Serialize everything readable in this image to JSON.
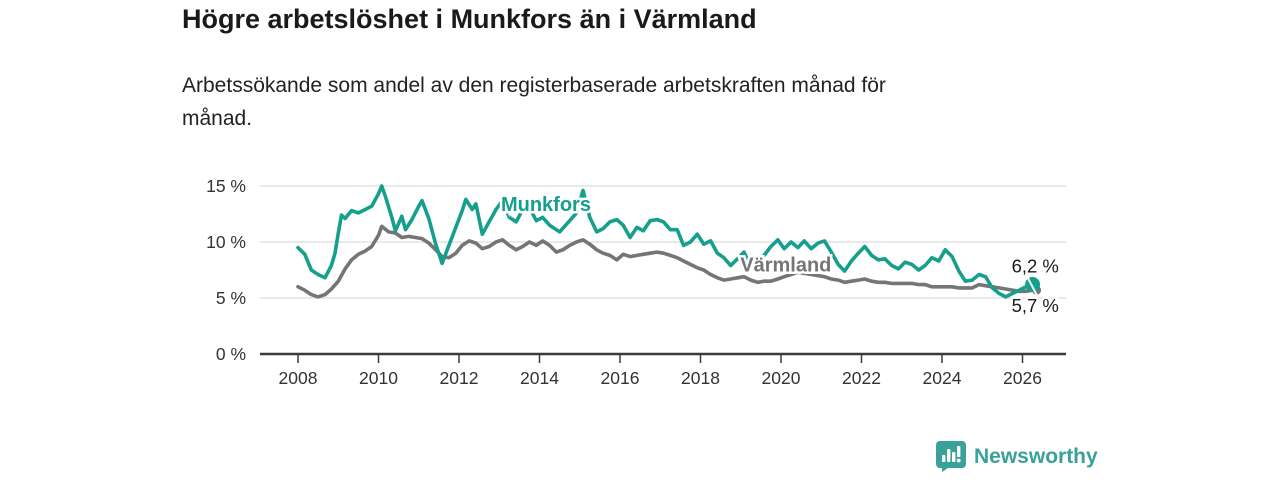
{
  "header": {
    "title": "Högre arbetslöshet i Munkfors än i Värmland",
    "subtitle_lines": [
      "Arbetssökande som andel av den registerbaserade arbetskraften månad för",
      "månad."
    ]
  },
  "chart_data": {
    "type": "line",
    "title": "Högre arbetslöshet i Munkfors än i Värmland",
    "subtitle": "Arbetssökande som andel av den registerbaserade arbetskraften månad för månad.",
    "xlabel": "",
    "ylabel": "",
    "xlim": [
      2007.05,
      2027.15
    ],
    "ylim": [
      0,
      15
    ],
    "grid": "horizontal",
    "legend_position": "inline-labels",
    "y_ticks": {
      "values": [
        0,
        5,
        10,
        15
      ],
      "labels": [
        "0 %",
        "5 %",
        "10 %",
        "15 %"
      ]
    },
    "x_ticks": {
      "values": [
        2008,
        2010,
        2012,
        2014,
        2016,
        2018,
        2020,
        2022,
        2024,
        2026
      ],
      "labels": [
        "2008",
        "2010",
        "2012",
        "2014",
        "2016",
        "2018",
        "2020",
        "2022",
        "2024",
        "2026"
      ]
    },
    "colors": {
      "munkfors": "#14A08C",
      "varmland": "#757575",
      "gridline": "#dcdcdc",
      "axis": "#3b3b3b",
      "tick_text": "#333333"
    },
    "series_labels": [
      {
        "text": "Munkfors",
        "year": 2014.16,
        "value": 13.4,
        "color": "#14A08C"
      },
      {
        "text": "Värmland",
        "year": 2020.12,
        "value": 8.0,
        "color": "#757575"
      }
    ],
    "series": [
      {
        "name": "Munkfors",
        "color": "#14A08C",
        "end_label": "6,2 %",
        "end_value": 6.2,
        "points": [
          [
            2008.0,
            9.5
          ],
          [
            2008.17,
            8.9
          ],
          [
            2008.33,
            7.5
          ],
          [
            2008.5,
            7.1
          ],
          [
            2008.67,
            6.8
          ],
          [
            2008.83,
            7.9
          ],
          [
            2008.92,
            9.0
          ],
          [
            2009.0,
            10.8
          ],
          [
            2009.08,
            12.4
          ],
          [
            2009.17,
            12.1
          ],
          [
            2009.33,
            12.8
          ],
          [
            2009.5,
            12.6
          ],
          [
            2009.67,
            12.9
          ],
          [
            2009.83,
            13.2
          ],
          [
            2010.0,
            14.3
          ],
          [
            2010.08,
            15.0
          ],
          [
            2010.17,
            14.1
          ],
          [
            2010.33,
            12.2
          ],
          [
            2010.42,
            11.0
          ],
          [
            2010.58,
            12.3
          ],
          [
            2010.67,
            11.1
          ],
          [
            2010.83,
            12.0
          ],
          [
            2011.0,
            13.2
          ],
          [
            2011.08,
            13.7
          ],
          [
            2011.25,
            12.1
          ],
          [
            2011.42,
            9.8
          ],
          [
            2011.58,
            8.1
          ],
          [
            2011.75,
            9.7
          ],
          [
            2011.92,
            11.3
          ],
          [
            2012.08,
            12.8
          ],
          [
            2012.17,
            13.8
          ],
          [
            2012.33,
            12.9
          ],
          [
            2012.42,
            13.4
          ],
          [
            2012.58,
            10.7
          ],
          [
            2012.75,
            11.8
          ],
          [
            2012.92,
            12.9
          ],
          [
            2013.08,
            13.7
          ],
          [
            2013.25,
            12.2
          ],
          [
            2013.42,
            11.8
          ],
          [
            2013.58,
            12.9
          ],
          [
            2013.75,
            13.1
          ],
          [
            2013.92,
            11.9
          ],
          [
            2014.08,
            12.2
          ],
          [
            2014.25,
            11.5
          ],
          [
            2014.5,
            10.9
          ],
          [
            2014.75,
            11.9
          ],
          [
            2014.92,
            12.6
          ],
          [
            2015.08,
            14.6
          ],
          [
            2015.25,
            12.2
          ],
          [
            2015.42,
            10.9
          ],
          [
            2015.58,
            11.2
          ],
          [
            2015.75,
            11.8
          ],
          [
            2015.92,
            12.0
          ],
          [
            2016.08,
            11.5
          ],
          [
            2016.25,
            10.4
          ],
          [
            2016.42,
            11.3
          ],
          [
            2016.58,
            11.0
          ],
          [
            2016.75,
            11.9
          ],
          [
            2016.92,
            12.0
          ],
          [
            2017.08,
            11.8
          ],
          [
            2017.25,
            11.1
          ],
          [
            2017.42,
            11.1
          ],
          [
            2017.58,
            9.7
          ],
          [
            2017.75,
            10.0
          ],
          [
            2017.92,
            10.7
          ],
          [
            2018.08,
            9.8
          ],
          [
            2018.25,
            10.1
          ],
          [
            2018.42,
            9.0
          ],
          [
            2018.58,
            8.6
          ],
          [
            2018.75,
            7.9
          ],
          [
            2018.92,
            8.5
          ],
          [
            2019.08,
            9.1
          ],
          [
            2019.25,
            7.8
          ],
          [
            2019.42,
            8.2
          ],
          [
            2019.58,
            8.8
          ],
          [
            2019.75,
            9.6
          ],
          [
            2019.92,
            10.2
          ],
          [
            2020.08,
            9.4
          ],
          [
            2020.25,
            10.0
          ],
          [
            2020.42,
            9.5
          ],
          [
            2020.58,
            10.1
          ],
          [
            2020.75,
            9.4
          ],
          [
            2020.92,
            9.9
          ],
          [
            2021.08,
            10.1
          ],
          [
            2021.25,
            9.1
          ],
          [
            2021.42,
            8.0
          ],
          [
            2021.58,
            7.4
          ],
          [
            2021.75,
            8.3
          ],
          [
            2021.92,
            9.0
          ],
          [
            2022.08,
            9.6
          ],
          [
            2022.25,
            8.8
          ],
          [
            2022.42,
            8.4
          ],
          [
            2022.58,
            8.5
          ],
          [
            2022.75,
            7.9
          ],
          [
            2022.92,
            7.6
          ],
          [
            2023.08,
            8.2
          ],
          [
            2023.25,
            8.0
          ],
          [
            2023.42,
            7.5
          ],
          [
            2023.58,
            7.9
          ],
          [
            2023.75,
            8.6
          ],
          [
            2023.92,
            8.3
          ],
          [
            2024.08,
            9.3
          ],
          [
            2024.25,
            8.7
          ],
          [
            2024.42,
            7.4
          ],
          [
            2024.58,
            6.5
          ],
          [
            2024.75,
            6.6
          ],
          [
            2024.92,
            7.1
          ],
          [
            2025.08,
            6.9
          ],
          [
            2025.25,
            5.9
          ],
          [
            2025.42,
            5.4
          ],
          [
            2025.58,
            5.1
          ],
          [
            2025.75,
            5.4
          ],
          [
            2025.92,
            5.7
          ],
          [
            2026.08,
            6.0
          ],
          [
            2026.25,
            6.2
          ]
        ]
      },
      {
        "name": "Värmland",
        "color": "#757575",
        "end_label": "5,7 %",
        "end_value": 5.7,
        "points": [
          [
            2008.0,
            6.0
          ],
          [
            2008.17,
            5.7
          ],
          [
            2008.33,
            5.3
          ],
          [
            2008.5,
            5.1
          ],
          [
            2008.67,
            5.3
          ],
          [
            2008.83,
            5.8
          ],
          [
            2009.0,
            6.5
          ],
          [
            2009.17,
            7.6
          ],
          [
            2009.33,
            8.4
          ],
          [
            2009.5,
            8.9
          ],
          [
            2009.67,
            9.2
          ],
          [
            2009.83,
            9.6
          ],
          [
            2010.0,
            10.6
          ],
          [
            2010.08,
            11.4
          ],
          [
            2010.25,
            10.9
          ],
          [
            2010.42,
            10.8
          ],
          [
            2010.58,
            10.4
          ],
          [
            2010.75,
            10.5
          ],
          [
            2010.92,
            10.4
          ],
          [
            2011.08,
            10.3
          ],
          [
            2011.25,
            9.9
          ],
          [
            2011.42,
            9.3
          ],
          [
            2011.58,
            8.7
          ],
          [
            2011.75,
            8.6
          ],
          [
            2011.92,
            9.0
          ],
          [
            2012.08,
            9.7
          ],
          [
            2012.25,
            10.1
          ],
          [
            2012.42,
            9.9
          ],
          [
            2012.58,
            9.4
          ],
          [
            2012.75,
            9.6
          ],
          [
            2012.92,
            10.0
          ],
          [
            2013.08,
            10.2
          ],
          [
            2013.25,
            9.7
          ],
          [
            2013.42,
            9.3
          ],
          [
            2013.58,
            9.6
          ],
          [
            2013.75,
            10.0
          ],
          [
            2013.92,
            9.7
          ],
          [
            2014.08,
            10.1
          ],
          [
            2014.25,
            9.7
          ],
          [
            2014.42,
            9.1
          ],
          [
            2014.58,
            9.3
          ],
          [
            2014.75,
            9.7
          ],
          [
            2014.92,
            10.0
          ],
          [
            2015.08,
            10.2
          ],
          [
            2015.25,
            9.8
          ],
          [
            2015.42,
            9.3
          ],
          [
            2015.58,
            9.0
          ],
          [
            2015.75,
            8.8
          ],
          [
            2015.92,
            8.4
          ],
          [
            2016.08,
            8.9
          ],
          [
            2016.25,
            8.7
          ],
          [
            2016.42,
            8.8
          ],
          [
            2016.58,
            8.9
          ],
          [
            2016.75,
            9.0
          ],
          [
            2016.92,
            9.1
          ],
          [
            2017.08,
            9.0
          ],
          [
            2017.25,
            8.8
          ],
          [
            2017.42,
            8.6
          ],
          [
            2017.58,
            8.3
          ],
          [
            2017.75,
            8.0
          ],
          [
            2017.92,
            7.7
          ],
          [
            2018.08,
            7.5
          ],
          [
            2018.25,
            7.1
          ],
          [
            2018.42,
            6.8
          ],
          [
            2018.58,
            6.6
          ],
          [
            2018.75,
            6.7
          ],
          [
            2018.92,
            6.8
          ],
          [
            2019.08,
            6.9
          ],
          [
            2019.25,
            6.6
          ],
          [
            2019.42,
            6.4
          ],
          [
            2019.58,
            6.5
          ],
          [
            2019.75,
            6.5
          ],
          [
            2019.92,
            6.7
          ],
          [
            2020.08,
            6.9
          ],
          [
            2020.25,
            7.1
          ],
          [
            2020.42,
            7.3
          ],
          [
            2020.58,
            7.2
          ],
          [
            2020.75,
            7.1
          ],
          [
            2020.92,
            7.0
          ],
          [
            2021.08,
            6.9
          ],
          [
            2021.25,
            6.7
          ],
          [
            2021.42,
            6.6
          ],
          [
            2021.58,
            6.4
          ],
          [
            2021.75,
            6.5
          ],
          [
            2021.92,
            6.6
          ],
          [
            2022.08,
            6.7
          ],
          [
            2022.25,
            6.5
          ],
          [
            2022.42,
            6.4
          ],
          [
            2022.58,
            6.4
          ],
          [
            2022.75,
            6.3
          ],
          [
            2022.92,
            6.3
          ],
          [
            2023.08,
            6.3
          ],
          [
            2023.25,
            6.3
          ],
          [
            2023.42,
            6.2
          ],
          [
            2023.58,
            6.2
          ],
          [
            2023.75,
            6.0
          ],
          [
            2023.92,
            6.0
          ],
          [
            2024.08,
            6.0
          ],
          [
            2024.25,
            6.0
          ],
          [
            2024.42,
            5.9
          ],
          [
            2024.58,
            5.9
          ],
          [
            2024.75,
            5.9
          ],
          [
            2024.92,
            6.2
          ],
          [
            2025.08,
            6.1
          ],
          [
            2025.25,
            6.0
          ],
          [
            2025.42,
            5.9
          ],
          [
            2025.58,
            5.8
          ],
          [
            2025.75,
            5.7
          ],
          [
            2025.92,
            5.6
          ],
          [
            2026.08,
            5.6
          ],
          [
            2026.25,
            5.7
          ]
        ]
      }
    ]
  },
  "footer": {
    "brand": "Newsworthy",
    "brand_color": "#3AA09A"
  }
}
